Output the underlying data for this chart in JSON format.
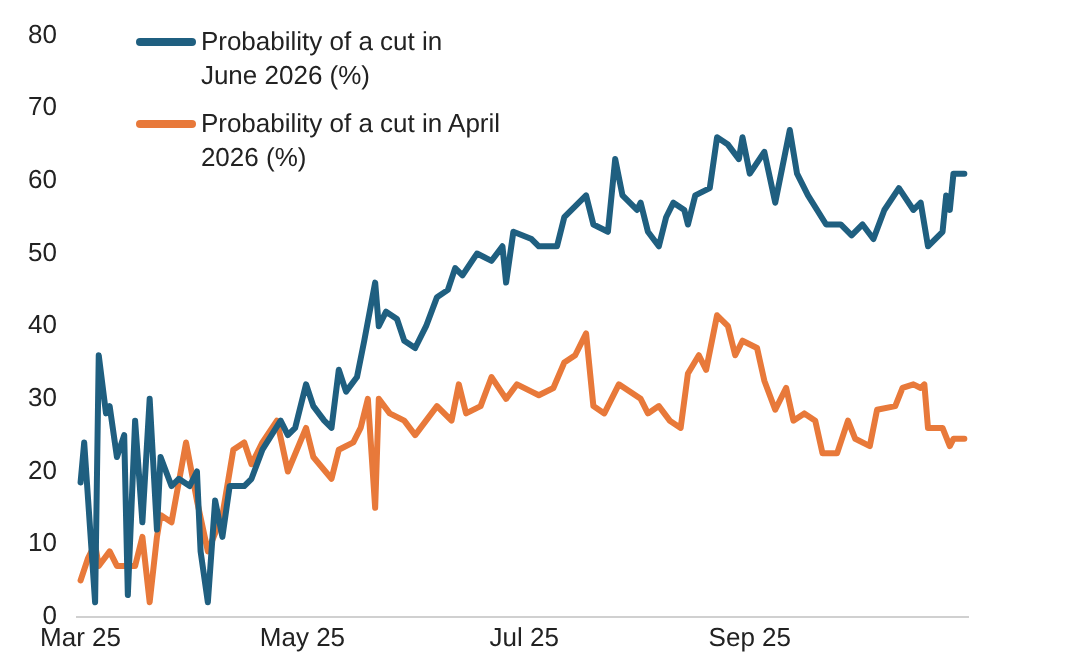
{
  "chart_data": {
    "type": "line",
    "xlim": [
      "2025-02-28",
      "2025-10-31"
    ],
    "xticks": [
      {
        "value": "2025-03-01",
        "label": "Mar 25"
      },
      {
        "value": "2025-05-01",
        "label": "May 25"
      },
      {
        "value": "2025-07-01",
        "label": "Jul 25"
      },
      {
        "value": "2025-09-01",
        "label": "Sep 25"
      }
    ],
    "ylim": [
      0,
      80
    ],
    "yticks": [
      0,
      10,
      20,
      30,
      40,
      50,
      60,
      70,
      80
    ],
    "grid": false,
    "legend": "top left",
    "marker": "none",
    "line_style": "solid",
    "series": [
      {
        "name": "Probability of a cut in June 2026 (%)",
        "color": "#1f5f80",
        "x": [
          "2025-03-01",
          "2025-03-02",
          "2025-03-05",
          "2025-03-06",
          "2025-03-08",
          "2025-03-09",
          "2025-03-11",
          "2025-03-13",
          "2025-03-14",
          "2025-03-16",
          "2025-03-18",
          "2025-03-20",
          "2025-03-22",
          "2025-03-23",
          "2025-03-26",
          "2025-03-28",
          "2025-03-31",
          "2025-04-02",
          "2025-04-03",
          "2025-04-05",
          "2025-04-07",
          "2025-04-09",
          "2025-04-11",
          "2025-04-15",
          "2025-04-17",
          "2025-04-20",
          "2025-04-25",
          "2025-04-27",
          "2025-04-29",
          "2025-05-02",
          "2025-05-04",
          "2025-05-07",
          "2025-05-09",
          "2025-05-11",
          "2025-05-13",
          "2025-05-16",
          "2025-05-18",
          "2025-05-21",
          "2025-05-22",
          "2025-05-24",
          "2025-05-27",
          "2025-05-29",
          "2025-06-01",
          "2025-06-04",
          "2025-06-07",
          "2025-06-10",
          "2025-06-12",
          "2025-06-14",
          "2025-06-18",
          "2025-06-22",
          "2025-06-25",
          "2025-06-26",
          "2025-06-28",
          "2025-07-03",
          "2025-07-05",
          "2025-07-10",
          "2025-07-12",
          "2025-07-14",
          "2025-07-18",
          "2025-07-20",
          "2025-07-24",
          "2025-07-26",
          "2025-07-28",
          "2025-08-01",
          "2025-08-02",
          "2025-08-04",
          "2025-08-07",
          "2025-08-09",
          "2025-08-11",
          "2025-08-14",
          "2025-08-15",
          "2025-08-17",
          "2025-08-21",
          "2025-08-23",
          "2025-08-26",
          "2025-08-29",
          "2025-08-30",
          "2025-09-01",
          "2025-09-05",
          "2025-09-08",
          "2025-09-10",
          "2025-09-12",
          "2025-09-14",
          "2025-09-17",
          "2025-09-22",
          "2025-09-26",
          "2025-09-29",
          "2025-10-02",
          "2025-10-05",
          "2025-10-08",
          "2025-10-12",
          "2025-10-16",
          "2025-10-18",
          "2025-10-20",
          "2025-10-24",
          "2025-10-25",
          "2025-10-26",
          "2025-10-27",
          "2025-10-30"
        ],
        "values": [
          18.5,
          24,
          2,
          36,
          28,
          29,
          22,
          25,
          3,
          27,
          13,
          30,
          12,
          22,
          18,
          19,
          18,
          20,
          9,
          2,
          16,
          11,
          18,
          18,
          19,
          23,
          27,
          25,
          26,
          32,
          29,
          27,
          26,
          34,
          31,
          33,
          38,
          46,
          40,
          42,
          41,
          38,
          37,
          40,
          44,
          45,
          48,
          47,
          50,
          49,
          51,
          46,
          53,
          52,
          51,
          51,
          55,
          56,
          58,
          54,
          53,
          63,
          58,
          56,
          57,
          53,
          51,
          55,
          57,
          56,
          54,
          58,
          59,
          66,
          65,
          63,
          66,
          61,
          64,
          57,
          62,
          67,
          61,
          58,
          54,
          54,
          52.5,
          54,
          52,
          56,
          59,
          56,
          57,
          51,
          53,
          58,
          56,
          61,
          61
        ]
      },
      {
        "name": "Probability of a cut in April 2026 (%)",
        "color": "#e8793a",
        "x": [
          "2025-03-01",
          "2025-03-03",
          "2025-03-05",
          "2025-03-06",
          "2025-03-09",
          "2025-03-11",
          "2025-03-16",
          "2025-03-18",
          "2025-03-20",
          "2025-03-22",
          "2025-03-23",
          "2025-03-26",
          "2025-03-30",
          "2025-04-02",
          "2025-04-05",
          "2025-04-09",
          "2025-04-12",
          "2025-04-15",
          "2025-04-17",
          "2025-04-20",
          "2025-04-24",
          "2025-04-27",
          "2025-05-02",
          "2025-05-04",
          "2025-05-09",
          "2025-05-11",
          "2025-05-15",
          "2025-05-17",
          "2025-05-19",
          "2025-05-21",
          "2025-05-22",
          "2025-05-25",
          "2025-05-29",
          "2025-06-01",
          "2025-06-04",
          "2025-06-07",
          "2025-06-11",
          "2025-06-13",
          "2025-06-15",
          "2025-06-19",
          "2025-06-22",
          "2025-06-26",
          "2025-06-29",
          "2025-07-03",
          "2025-07-05",
          "2025-07-09",
          "2025-07-12",
          "2025-07-15",
          "2025-07-18",
          "2025-07-20",
          "2025-07-23",
          "2025-07-27",
          "2025-08-02",
          "2025-08-04",
          "2025-08-07",
          "2025-08-10",
          "2025-08-13",
          "2025-08-15",
          "2025-08-18",
          "2025-08-20",
          "2025-08-23",
          "2025-08-26",
          "2025-08-28",
          "2025-08-30",
          "2025-09-03",
          "2025-09-05",
          "2025-09-08",
          "2025-09-11",
          "2025-09-13",
          "2025-09-16",
          "2025-09-19",
          "2025-09-21",
          "2025-09-25",
          "2025-09-28",
          "2025-09-30",
          "2025-10-04",
          "2025-10-06",
          "2025-10-11",
          "2025-10-13",
          "2025-10-16",
          "2025-10-18",
          "2025-10-19",
          "2025-10-20",
          "2025-10-24",
          "2025-10-26",
          "2025-10-27",
          "2025-10-30"
        ],
        "values": [
          5,
          8,
          10,
          7,
          9,
          7,
          7,
          11,
          2,
          11,
          14,
          13,
          24,
          16,
          9,
          14,
          23,
          24,
          21,
          24,
          27,
          20,
          26,
          22,
          19,
          23,
          24,
          26,
          30,
          15,
          30,
          28,
          27,
          25,
          27,
          29,
          27,
          32,
          28,
          29,
          33,
          30,
          32,
          31,
          30.5,
          31.5,
          35,
          36,
          39,
          29,
          28,
          32,
          30,
          28,
          29,
          27,
          26,
          33.5,
          36,
          34,
          41.5,
          40,
          36,
          38,
          37,
          32.5,
          28.5,
          31.5,
          27,
          28,
          27,
          22.5,
          22.5,
          27,
          24.5,
          23.5,
          28.5,
          29,
          31.5,
          32,
          31.5,
          32,
          26,
          26,
          23.5,
          24.5,
          24.5
        ]
      }
    ]
  }
}
